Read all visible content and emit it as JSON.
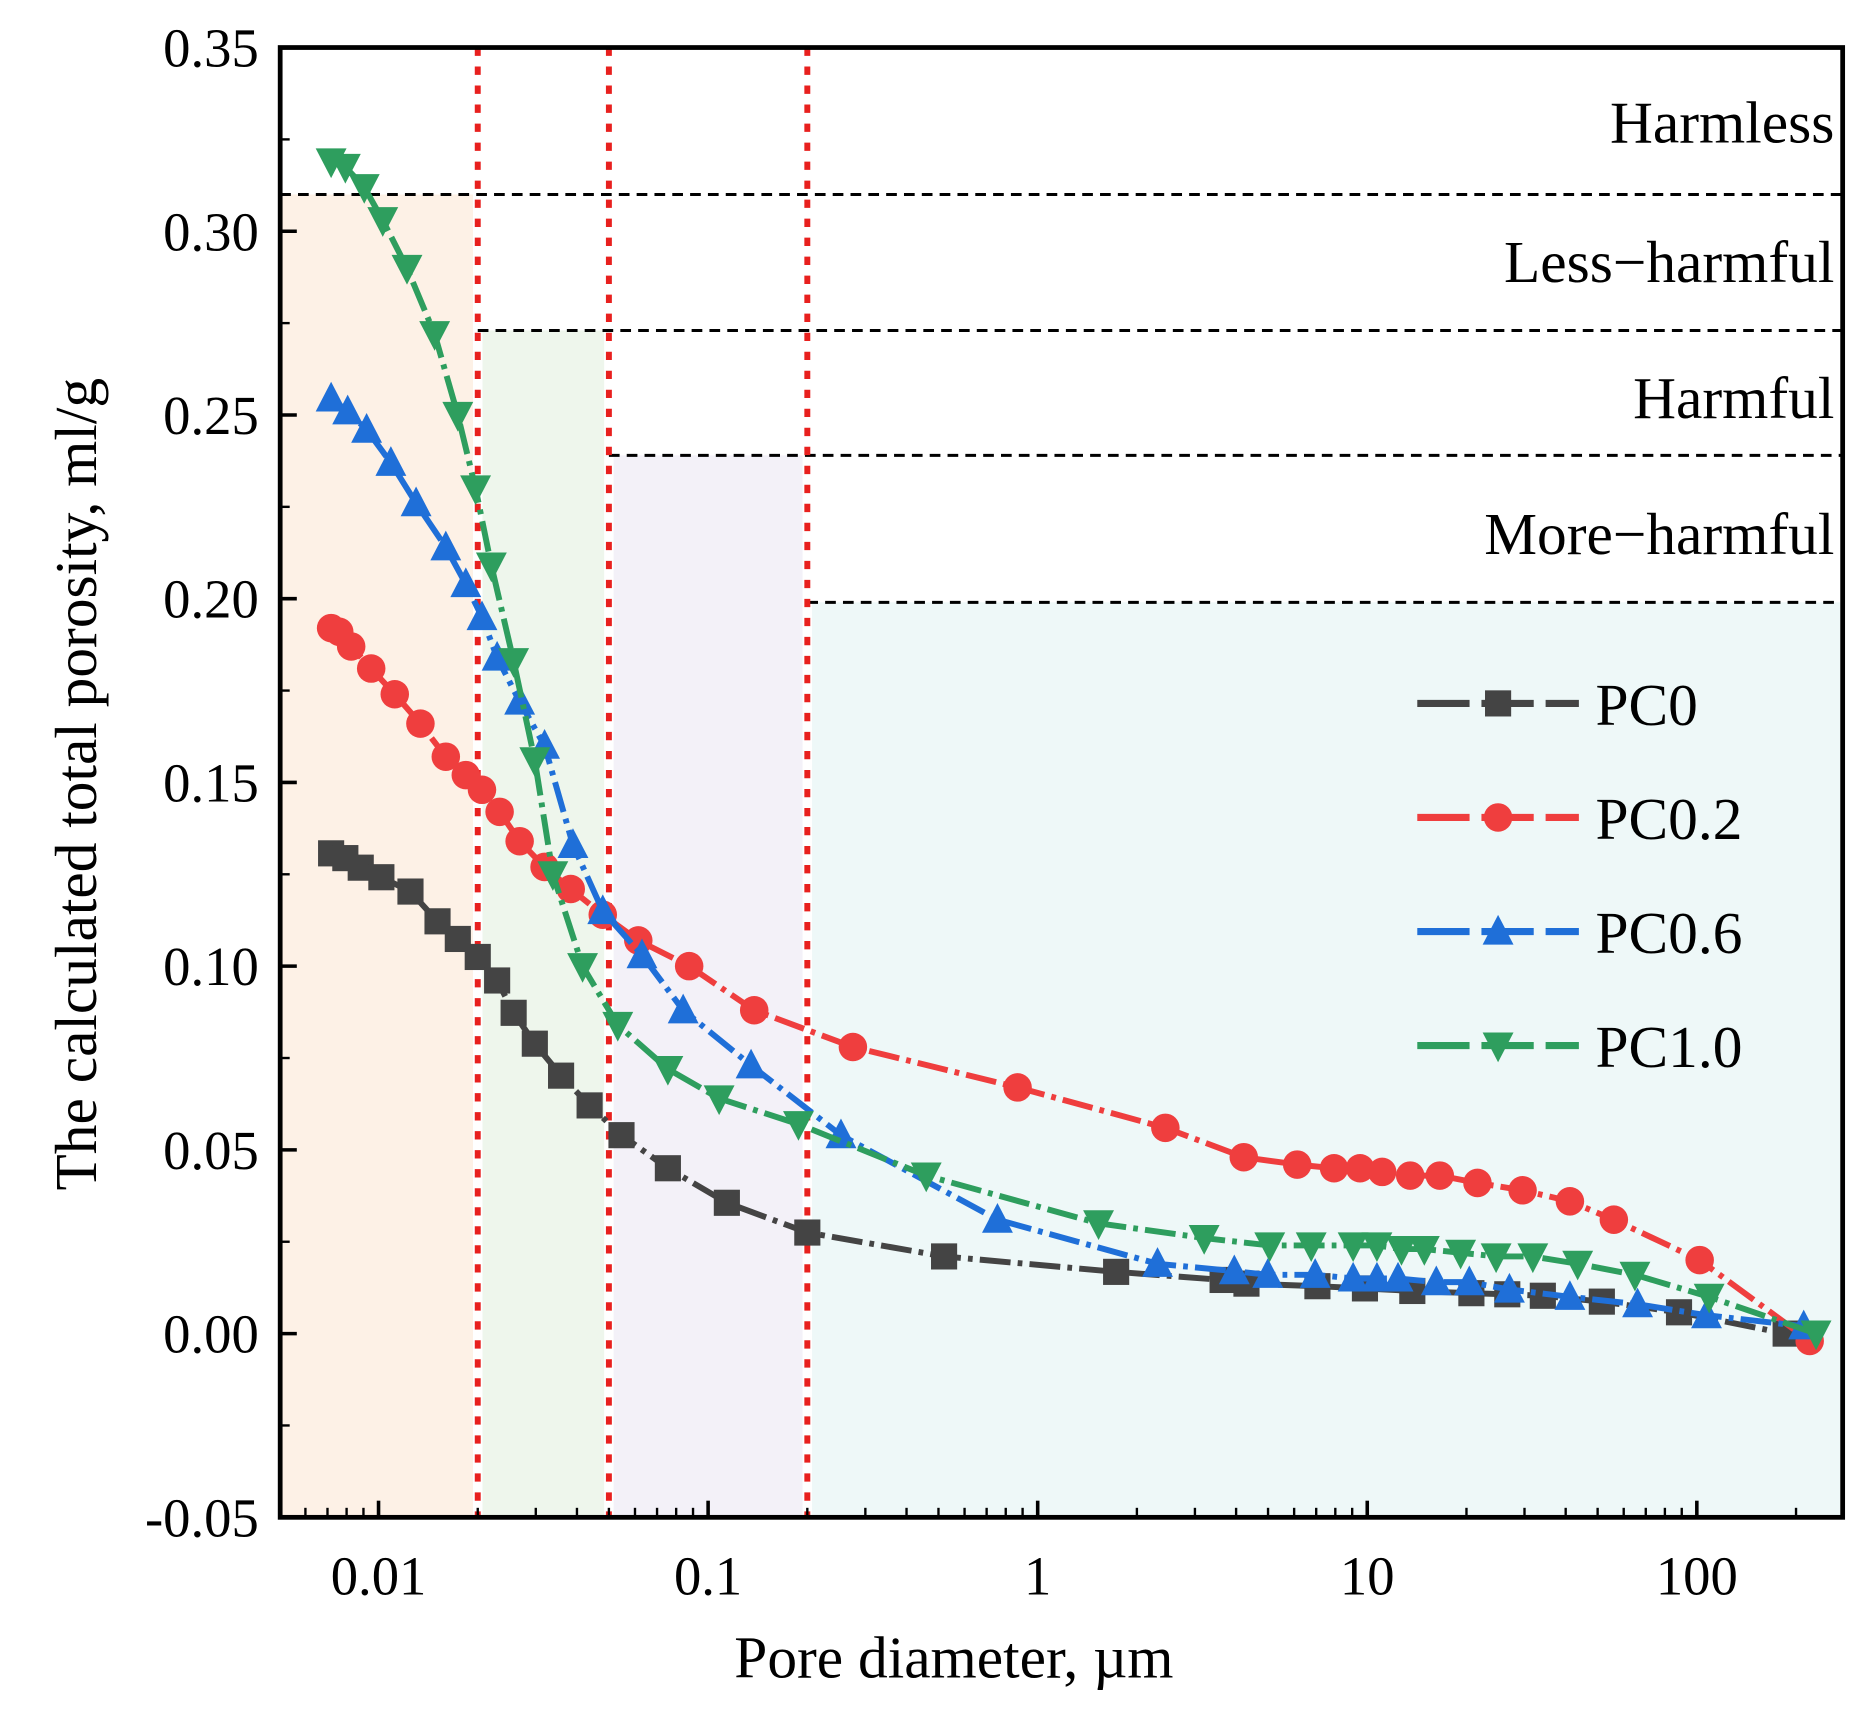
{
  "chart_data": {
    "type": "line",
    "xlabel": "Pore diameter, µm",
    "ylabel": "The calculated total porosity, ml/g",
    "xscale": "log",
    "xlim": [
      0.00503,
      277
    ],
    "ylim": [
      -0.05,
      0.35
    ],
    "x_ticks": [
      {
        "v": 0.01,
        "label": "0.01"
      },
      {
        "v": 0.1,
        "label": "0.1"
      },
      {
        "v": 1,
        "label": "1"
      },
      {
        "v": 10,
        "label": "10"
      },
      {
        "v": 100,
        "label": "100"
      }
    ],
    "y_ticks": [
      {
        "v": -0.05,
        "label": "-0.05"
      },
      {
        "v": 0,
        "label": "0.00"
      },
      {
        "v": 0.05,
        "label": "0.05"
      },
      {
        "v": 0.1,
        "label": "0.10"
      },
      {
        "v": 0.15,
        "label": "0.15"
      },
      {
        "v": 0.2,
        "label": "0.20"
      },
      {
        "v": 0.25,
        "label": "0.25"
      },
      {
        "v": 0.3,
        "label": "0.30"
      },
      {
        "v": 0.35,
        "label": "0.35"
      }
    ],
    "legend_position": "right",
    "grid": false,
    "regions": [
      {
        "x0": 0.00503,
        "x1": 0.02,
        "ytop": 0.31,
        "color": "#fdf1e6",
        "label": "Harmless",
        "label_y": 0.33
      },
      {
        "x0": 0.02,
        "x1": 0.05,
        "ytop": 0.273,
        "color": "#eef6ec",
        "label": "Less−harmful",
        "label_y": 0.292
      },
      {
        "x0": 0.05,
        "x1": 0.2,
        "ytop": 0.239,
        "color": "#f3f1f8",
        "label": "Harmful",
        "label_y": 0.255
      },
      {
        "x0": 0.2,
        "x1": 277,
        "ytop": 0.199,
        "color": "#eef8f8",
        "label": "More−harmful",
        "label_y": 0.218
      }
    ],
    "vertical_lines": [
      0.02,
      0.05,
      0.2
    ],
    "series": [
      {
        "name": "PC0",
        "color": "#444444",
        "marker": "square",
        "x": [
          0.00718,
          0.00793,
          0.00883,
          0.0102,
          0.0125,
          0.0151,
          0.0174,
          0.02,
          0.0229,
          0.0257,
          0.0298,
          0.0358,
          0.0437,
          0.0546,
          0.0755,
          0.114,
          0.2,
          0.52,
          1.73,
          3.64,
          4.3,
          7.06,
          9.84,
          13.7,
          20.7,
          26.6,
          34.1,
          51.5,
          88.3,
          186
        ],
        "y": [
          0.1307,
          0.1294,
          0.1268,
          0.1242,
          0.1203,
          0.1122,
          0.1074,
          0.1025,
          0.0961,
          0.0873,
          0.0789,
          0.0702,
          0.0621,
          0.054,
          0.045,
          0.0356,
          0.0275,
          0.021,
          0.0168,
          0.0146,
          0.0136,
          0.0129,
          0.0123,
          0.0116,
          0.011,
          0.0107,
          0.0103,
          0.0087,
          0.0058,
          0.0
        ]
      },
      {
        "name": "PC0.2",
        "color": "#ef3e3e",
        "marker": "circle",
        "x": [
          0.00718,
          0.0076,
          0.00826,
          0.0095,
          0.0112,
          0.0134,
          0.016,
          0.0184,
          0.0206,
          0.0233,
          0.0268,
          0.0319,
          0.0383,
          0.0479,
          0.0614,
          0.0876,
          0.138,
          0.275,
          0.869,
          2.44,
          4.22,
          6.13,
          7.93,
          9.51,
          11.1,
          13.5,
          16.6,
          21.6,
          29.6,
          41.2,
          56.0,
          102,
          220
        ],
        "y": [
          0.192,
          0.191,
          0.187,
          0.181,
          0.174,
          0.166,
          0.157,
          0.152,
          0.148,
          0.142,
          0.134,
          0.127,
          0.121,
          0.114,
          0.107,
          0.1,
          0.088,
          0.078,
          0.067,
          0.056,
          0.048,
          0.046,
          0.045,
          0.045,
          0.044,
          0.043,
          0.043,
          0.041,
          0.039,
          0.036,
          0.031,
          0.02,
          -0.002
        ]
      },
      {
        "name": "PC0.6",
        "color": "#1f6fd8",
        "marker": "triangle-up",
        "x": [
          0.00718,
          0.00806,
          0.0092,
          0.0109,
          0.013,
          0.016,
          0.0184,
          0.0206,
          0.0229,
          0.0268,
          0.0319,
          0.0389,
          0.0479,
          0.063,
          0.084,
          0.135,
          0.253,
          0.755,
          2.31,
          3.95,
          4.99,
          6.95,
          9.06,
          10.7,
          12.4,
          16.2,
          20.4,
          27.0,
          41.2,
          66.1,
          107,
          211
        ],
        "y": [
          0.2545,
          0.251,
          0.246,
          0.237,
          0.226,
          0.214,
          0.204,
          0.195,
          0.184,
          0.172,
          0.16,
          0.133,
          0.115,
          0.103,
          0.088,
          0.073,
          0.054,
          0.031,
          0.019,
          0.017,
          0.016,
          0.016,
          0.015,
          0.015,
          0.015,
          0.014,
          0.014,
          0.012,
          0.01,
          0.008,
          0.005,
          0.002
        ]
      },
      {
        "name": "PC1.0",
        "color": "#2e9e5e",
        "marker": "triangle-down",
        "x": [
          0.00718,
          0.00793,
          0.00905,
          0.0103,
          0.0122,
          0.0148,
          0.0174,
          0.0197,
          0.022,
          0.0257,
          0.0298,
          0.0338,
          0.0416,
          0.0532,
          0.0755,
          0.108,
          0.188,
          0.459,
          1.53,
          3.2,
          5.06,
          6.76,
          9.06,
          10.7,
          12.7,
          14.9,
          19.2,
          24.6,
          31.8,
          43.5,
          64.9,
          109,
          230
        ],
        "y": [
          0.319,
          0.3175,
          0.312,
          0.303,
          0.29,
          0.272,
          0.25,
          0.23,
          0.209,
          0.183,
          0.156,
          0.125,
          0.1,
          0.084,
          0.072,
          0.064,
          0.057,
          0.043,
          0.03,
          0.026,
          0.024,
          0.024,
          0.024,
          0.024,
          0.023,
          0.023,
          0.022,
          0.021,
          0.021,
          0.019,
          0.016,
          0.01,
          0.0
        ]
      }
    ]
  }
}
